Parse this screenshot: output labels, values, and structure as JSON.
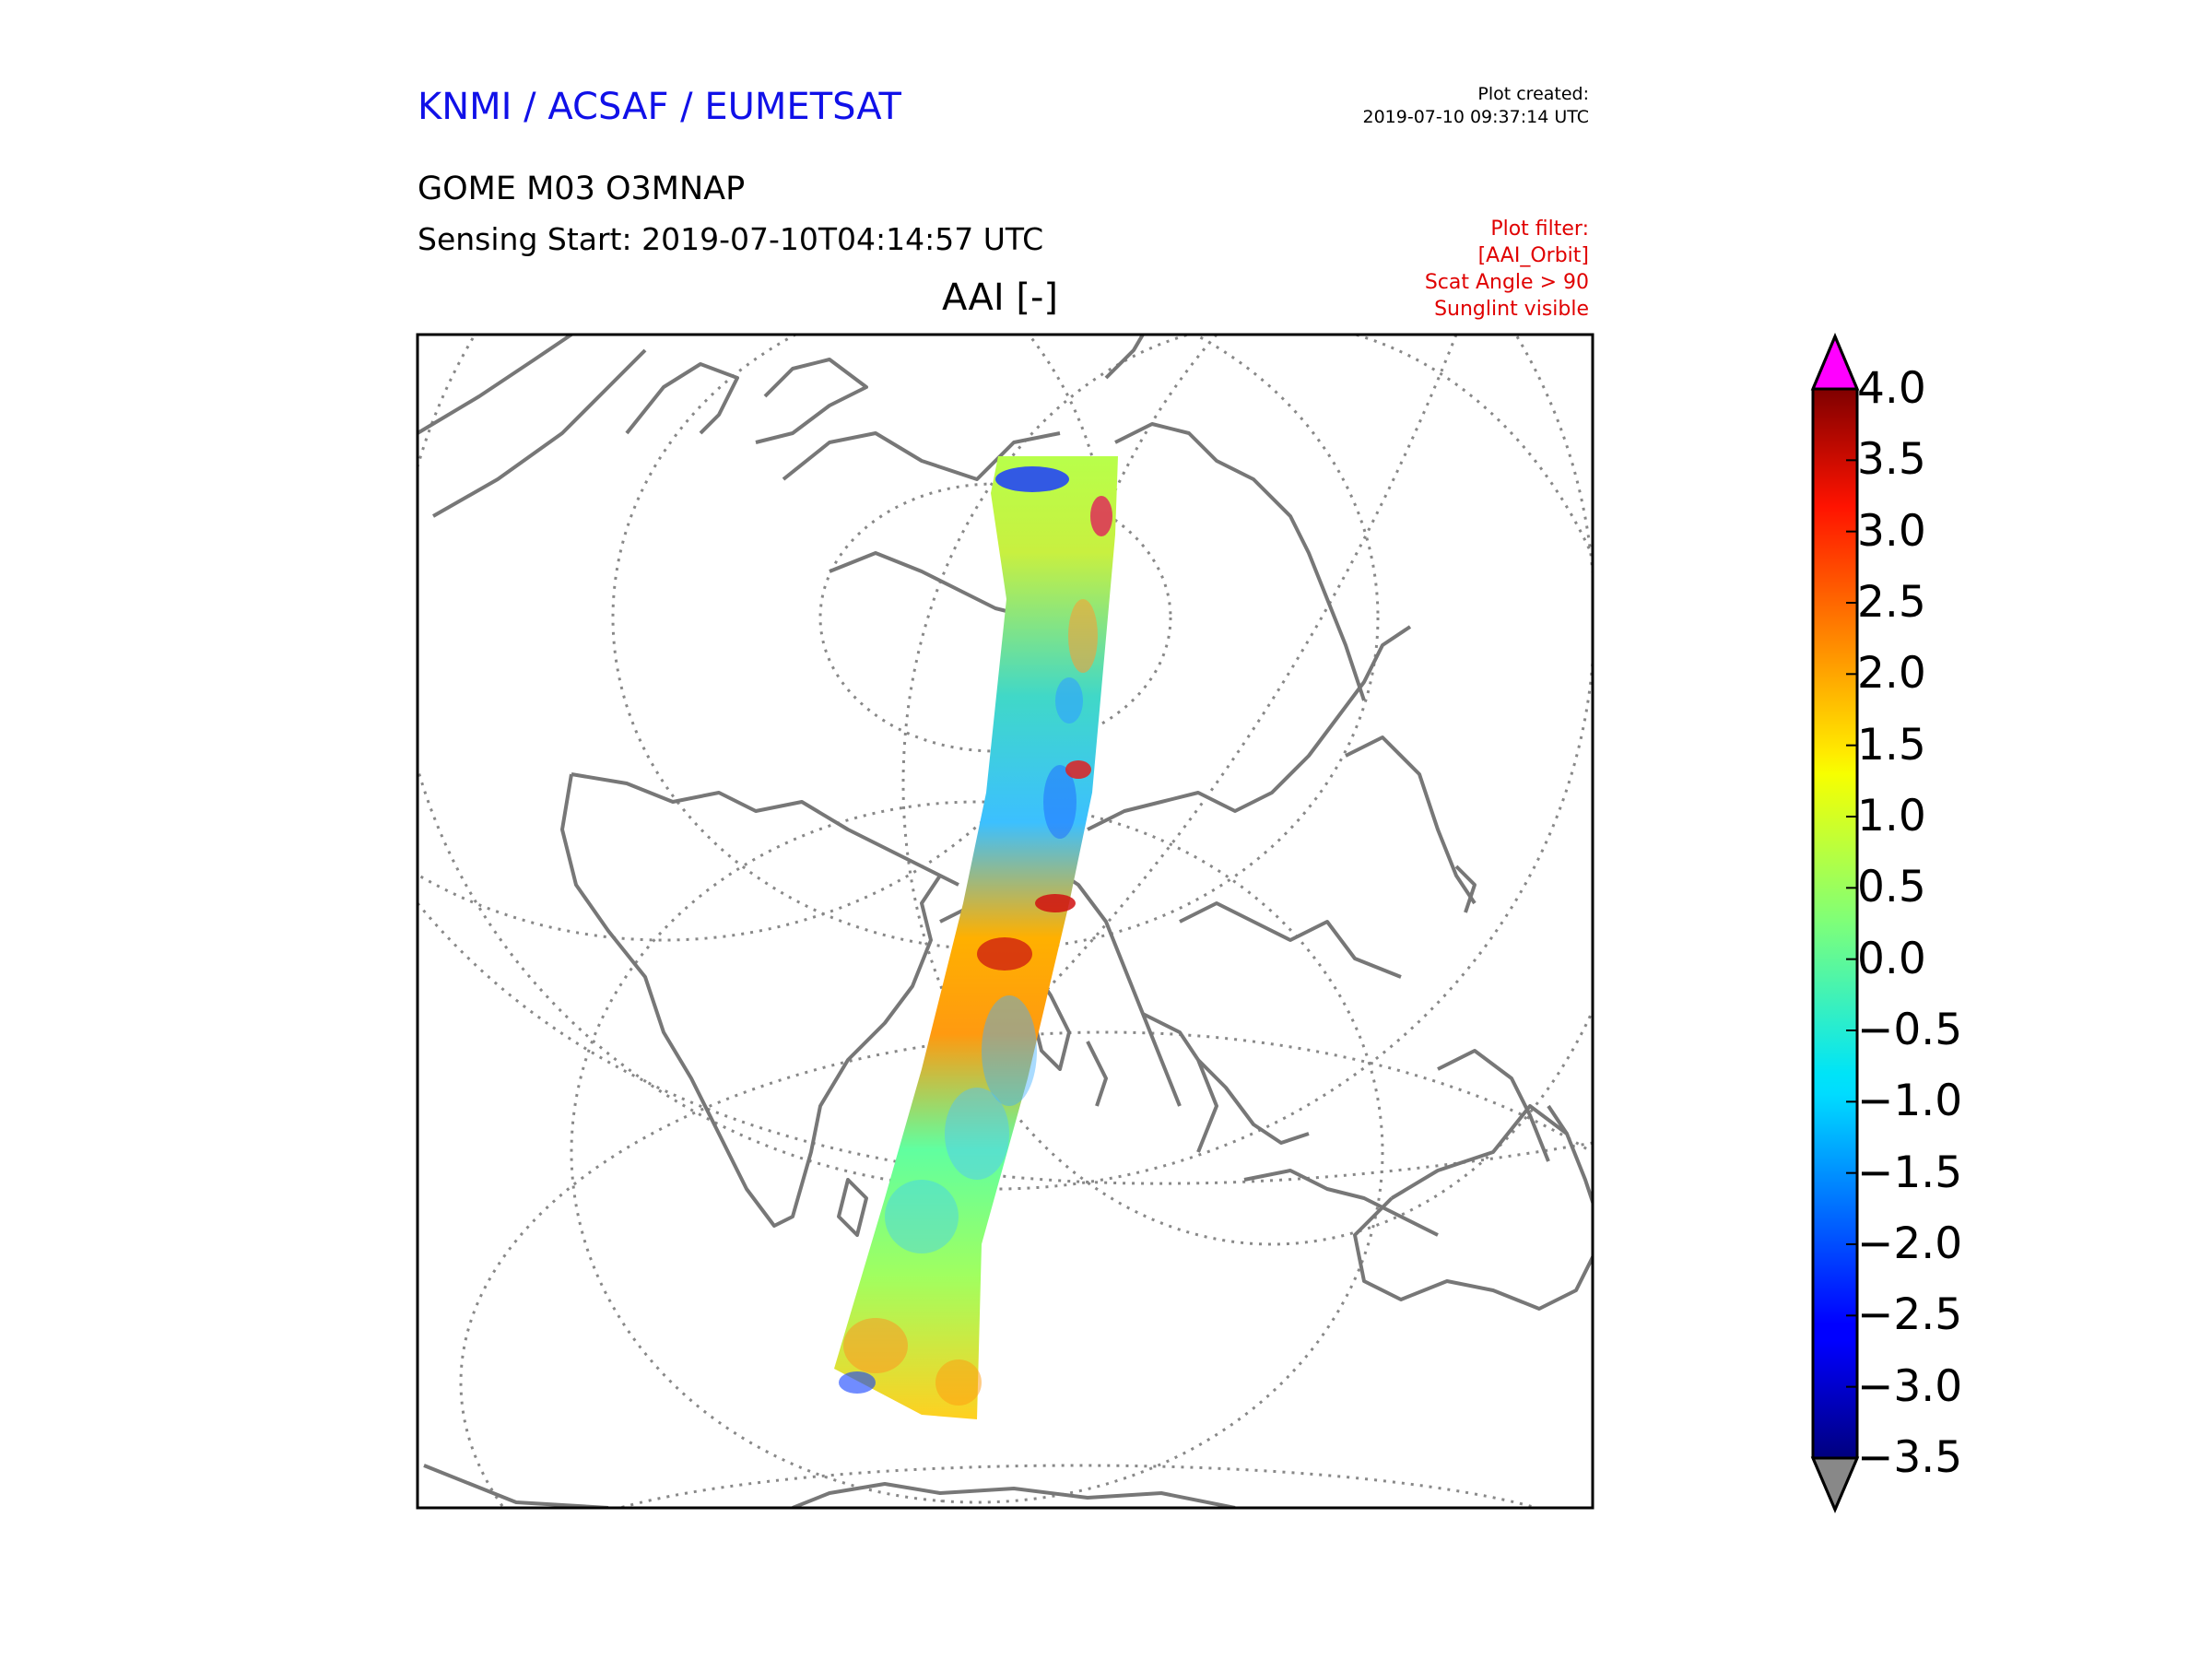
{
  "header": {
    "organization": "KNMI / ACSAF / EUMETSAT",
    "plot_created_label": "Plot created:",
    "plot_created_time": "2019-07-10 09:37:14 UTC",
    "product": "GOME M03 O3MNAP",
    "sensing_start": "Sensing Start: 2019-07-10T04:14:57 UTC",
    "variable": "AAI [-]"
  },
  "plot_filter": {
    "title": "Plot filter:",
    "lines": [
      "[AAI_Orbit]",
      "Scat Angle > 90",
      "Sunglint visible"
    ]
  },
  "colorbar": {
    "ticks": [
      "4.0",
      "3.5",
      "3.0",
      "2.5",
      "2.0",
      "1.5",
      "1.0",
      "0.5",
      "0.0",
      "−0.5",
      "−1.0",
      "−1.5",
      "−2.0",
      "−2.5",
      "−3.0",
      "−3.5"
    ],
    "min": -3.5,
    "max": 4.0,
    "over_color": "#ff00ff",
    "under_color": "#888888",
    "colormap": "jet"
  },
  "map": {
    "coastline_color": "#777777",
    "graticule_color": "#888888"
  }
}
